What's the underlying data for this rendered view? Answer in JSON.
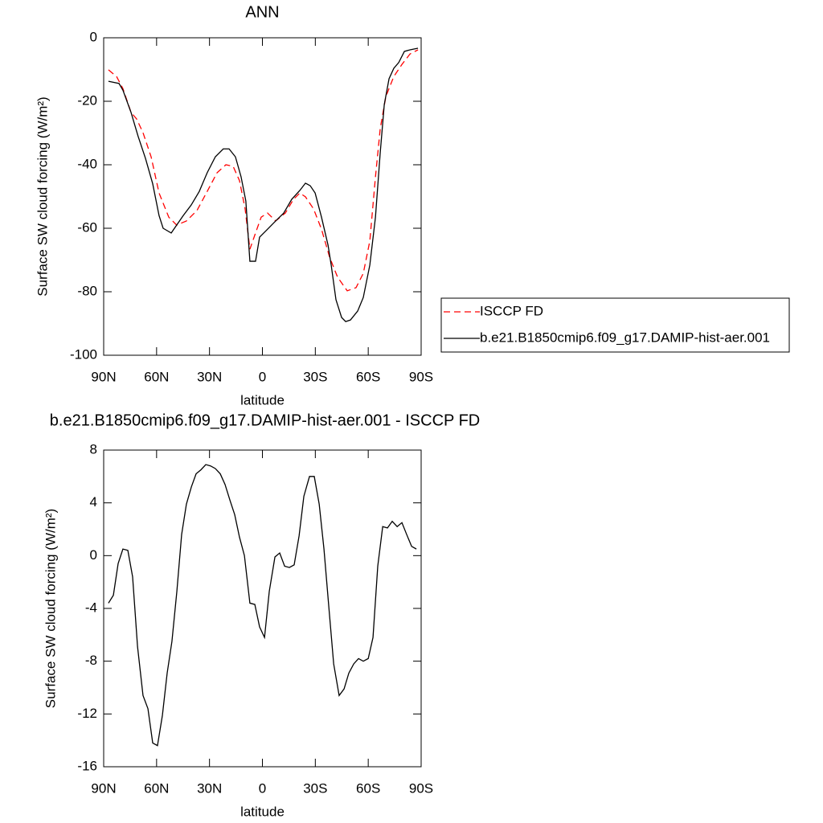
{
  "chart_data": [
    {
      "type": "line",
      "title": "ANN",
      "xlabel": "latitude",
      "ylabel": "Surface SW cloud forcing (W/m²)",
      "xlim": [
        90,
        -90
      ],
      "xticks": [
        {
          "value": 90,
          "label": "90N"
        },
        {
          "value": 60,
          "label": "60N"
        },
        {
          "value": 30,
          "label": "30N"
        },
        0,
        {
          "value": -30,
          "label": "30S"
        },
        {
          "value": -60,
          "label": "60S"
        },
        {
          "value": -90,
          "label": "90S"
        }
      ],
      "ylim": [
        -100,
        0
      ],
      "yticks": [
        0,
        -20,
        -40,
        -60,
        -80,
        -100
      ],
      "legend": "right",
      "series": [
        {
          "name": "ISCCP FD",
          "color": "#ff0000",
          "style": "dashed",
          "x": [
            87.3,
            82.7,
            79.1,
            74.5,
            71.3,
            67.7,
            63.1,
            58.6,
            53.1,
            48.6,
            43.1,
            37.1,
            31.3,
            25.7,
            20.7,
            16.6,
            13.0,
            9.8,
            7.1,
            3.9,
            0.7,
            -2.9,
            -7.5,
            -13,
            -17.6,
            -21.2,
            -24.4,
            -29,
            -33.5,
            -38.1,
            -42.6,
            -48.1,
            -53.1,
            -57.2,
            -60.9,
            -64.1,
            -66.8,
            -70,
            -74.5,
            -79.1,
            -83.7,
            -88.2
          ],
          "values": [
            -10.1,
            -12.2,
            -16,
            -23.5,
            -25.6,
            -29.9,
            -37.5,
            -48.9,
            -56.5,
            -59,
            -57.7,
            -54.4,
            -48.4,
            -42.5,
            -40,
            -40.5,
            -45,
            -53.9,
            -66.6,
            -61.5,
            -56.5,
            -55.2,
            -57.7,
            -55.2,
            -50.9,
            -48.9,
            -50.1,
            -53.9,
            -60.3,
            -69.1,
            -75.4,
            -79.7,
            -78.7,
            -74.2,
            -64,
            -43.8,
            -28.6,
            -18.5,
            -12.2,
            -8.4,
            -5.1,
            -3.8
          ]
        },
        {
          "name": "b.e21.B1850cmip6.f09_g17.DAMIP-hist-aer.001",
          "color": "#000000",
          "style": "solid",
          "x": [
            87.3,
            81.3,
            79.1,
            74.5,
            70.5,
            66.3,
            62.2,
            58.6,
            56.3,
            51.7,
            48.6,
            44.9,
            40.4,
            35.8,
            31.3,
            26.7,
            22.2,
            18.9,
            15.3,
            12.1,
            9.4,
            7.1,
            3.9,
            1.6,
            -2.9,
            -7.5,
            -12.1,
            -16.6,
            -21.2,
            -24.4,
            -27.1,
            -29.9,
            -33.5,
            -37.2,
            -39.0,
            -41.7,
            -44.9,
            -47.2,
            -49.9,
            -54.0,
            -57.2,
            -60.9,
            -64.1,
            -66.8,
            -69.1,
            -71.8,
            -74.5,
            -77.3,
            -80.5,
            -83.7,
            -88.2
          ],
          "values": [
            -13.7,
            -14.4,
            -16.5,
            -23.5,
            -31,
            -38,
            -46,
            -56,
            -60,
            -61.5,
            -59,
            -56,
            -52.7,
            -48.4,
            -42.5,
            -37.5,
            -35,
            -35,
            -37.5,
            -43.8,
            -51.4,
            -70.4,
            -70.4,
            -62.8,
            -60.3,
            -57.7,
            -55.2,
            -50.9,
            -48.1,
            -45.8,
            -46.6,
            -48.9,
            -56.5,
            -65.3,
            -71.6,
            -82.5,
            -88.1,
            -89.4,
            -88.9,
            -86.1,
            -81.8,
            -71.6,
            -56.5,
            -36.2,
            -21,
            -12.9,
            -9.6,
            -7.8,
            -4.3,
            -3.8,
            -3.3
          ]
        }
      ]
    },
    {
      "type": "line",
      "title": "b.e21.B1850cmip6.f09_g17.DAMIP-hist-aer.001 - ISCCP FD",
      "xlabel": "latitude",
      "ylabel": "Surface SW cloud forcing (W/m²)",
      "xlim": [
        90,
        -90
      ],
      "xticks": [
        {
          "value": 90,
          "label": "90N"
        },
        {
          "value": 60,
          "label": "60N"
        },
        {
          "value": 30,
          "label": "30N"
        },
        0,
        {
          "value": -30,
          "label": "30S"
        },
        {
          "value": -60,
          "label": "60S"
        },
        {
          "value": -90,
          "label": "90S"
        }
      ],
      "ylim": [
        -16,
        8
      ],
      "yticks": [
        8,
        4,
        0,
        -4,
        -8,
        -12,
        -16
      ],
      "color": "#000000",
      "style": "solid",
      "x": [
        87.3,
        84.5,
        81.8,
        79.1,
        76.3,
        73.6,
        70.8,
        67.7,
        64.9,
        62.2,
        59.5,
        56.7,
        54,
        51.3,
        48.5,
        45.8,
        43.1,
        40.3,
        37.6,
        34.9,
        32.1,
        29.4,
        26.7,
        23.9,
        21.2,
        18.4,
        15.7,
        13,
        10.2,
        7.1,
        4.3,
        1.6,
        -1.2,
        -3.9,
        -7.1,
        -9.8,
        -12.6,
        -15.3,
        -18,
        -20.8,
        -23.5,
        -26.7,
        -29.4,
        -32.2,
        -34.9,
        -37.6,
        -40.4,
        -43.5,
        -46.3,
        -49,
        -51.8,
        -54.5,
        -57.2,
        -60,
        -62.7,
        -65.4,
        -68.2,
        -70.9,
        -73.6,
        -76.4,
        -79.1,
        -81.8,
        -84.6,
        -87.3
      ],
      "values": [
        -3.6,
        -3,
        -0.6,
        0.5,
        0.4,
        -1.6,
        -6.9,
        -10.6,
        -11.6,
        -14.2,
        -14.4,
        -12.1,
        -8.9,
        -6.5,
        -2.7,
        1.6,
        3.9,
        5.2,
        6.2,
        6.5,
        6.9,
        6.8,
        6.6,
        6.2,
        5.4,
        4.2,
        3.1,
        1.4,
        0,
        -3.6,
        -3.7,
        -5.4,
        -6.2,
        -2.7,
        -0.1,
        0.2,
        -0.8,
        -0.9,
        -0.7,
        1.5,
        4.5,
        6,
        6,
        3.9,
        0.5,
        -3.8,
        -8.2,
        -10.6,
        -10.1,
        -8.9,
        -8.2,
        -7.8,
        -8,
        -7.8,
        -6.2,
        -0.8,
        2.2,
        2.1,
        2.6,
        2.2,
        2.5,
        1.6,
        0.7,
        0.5
      ]
    }
  ]
}
